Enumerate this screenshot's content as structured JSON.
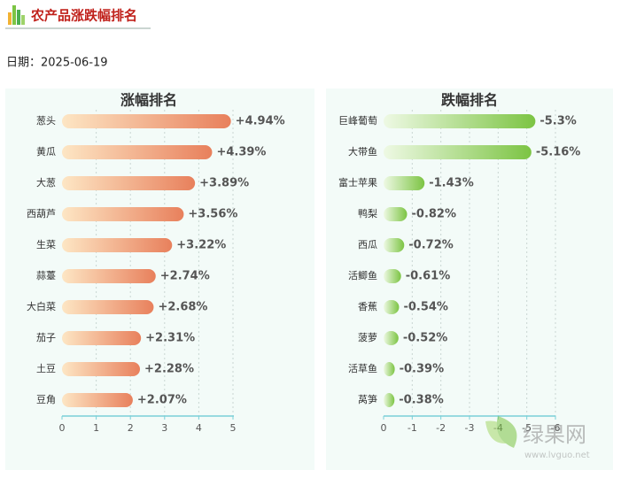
{
  "header": {
    "title": "农产品涨跌幅排名",
    "date": "日期：2025-06-19"
  },
  "watermark": {
    "name": "绿果网",
    "url": "www.lvguo.net"
  },
  "chart_data": [
    {
      "type": "bar",
      "orientation": "horizontal",
      "title": "涨幅排名",
      "categories": [
        "葱头",
        "黄瓜",
        "大葱",
        "西葫芦",
        "生菜",
        "蒜薹",
        "大白菜",
        "茄子",
        "土豆",
        "豆角"
      ],
      "values": [
        4.94,
        4.39,
        3.89,
        3.56,
        3.22,
        2.74,
        2.68,
        2.31,
        2.28,
        2.07
      ],
      "value_labels": [
        "+4.94%",
        "+4.39%",
        "+3.89%",
        "+3.56%",
        "+3.22%",
        "+2.74%",
        "+2.68%",
        "+2.31%",
        "+2.28%",
        "+2.07%"
      ],
      "colors": [
        "#fde6c4",
        "#e8805c"
      ],
      "xlim": [
        0,
        5
      ],
      "xticks": [
        0,
        1,
        2,
        3,
        4,
        5
      ],
      "grid": true
    },
    {
      "type": "bar",
      "orientation": "horizontal",
      "title": "跌幅排名",
      "categories": [
        "巨峰葡萄",
        "大带鱼",
        "富士苹果",
        "鸭梨",
        "西瓜",
        "活鲫鱼",
        "香蕉",
        "菠萝",
        "活草鱼",
        "莴笋"
      ],
      "values": [
        -5.3,
        -5.16,
        -1.43,
        -0.82,
        -0.72,
        -0.61,
        -0.54,
        -0.52,
        -0.39,
        -0.38
      ],
      "value_labels": [
        "-5.3%",
        "-5.16%",
        "-1.43%",
        "-0.82%",
        "-0.72%",
        "-0.61%",
        "-0.54%",
        "-0.52%",
        "-0.39%",
        "-0.38%"
      ],
      "colors": [
        "#eef9e4",
        "#7cc443"
      ],
      "xlim": [
        0,
        -6
      ],
      "xticks": [
        0,
        -1,
        -2,
        -3,
        -4,
        -5,
        -6
      ],
      "grid": true
    }
  ]
}
